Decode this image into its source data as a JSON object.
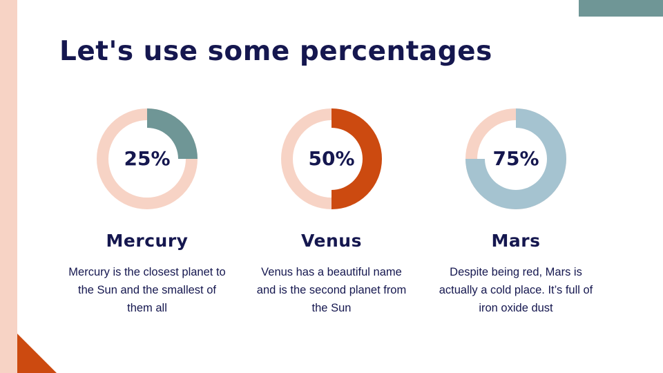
{
  "title": "Let's use some percentages",
  "colors": {
    "ring": "#f7d3c5",
    "text": "#15174f",
    "mercury": "#6f9696",
    "venus": "#cc4a10",
    "mars": "#a5c3d0"
  },
  "chart_data": {
    "type": "donut",
    "series": [
      {
        "name": "Mercury",
        "value": 25,
        "label": "25%",
        "color": "#6f9696",
        "description": "Mercury is the closest planet to the Sun and the smallest of them all"
      },
      {
        "name": "Venus",
        "value": 50,
        "label": "50%",
        "color": "#cc4a10",
        "description": "Venus has a beautiful name and is the second planet from the Sun"
      },
      {
        "name": "Mars",
        "value": 75,
        "label": "75%",
        "color": "#a5c3d0",
        "description": "Despite being red, Mars is actually a cold place. It’s full of iron oxide dust"
      }
    ]
  }
}
